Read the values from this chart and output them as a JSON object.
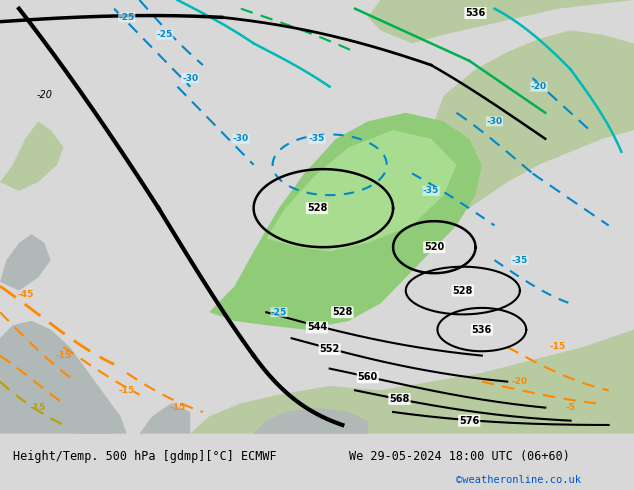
{
  "title_left": "Height/Temp. 500 hPa [gdmp][°C] ECMWF",
  "title_right": "We 29-05-2024 18:00 UTC (06+60)",
  "credit": "©weatheronline.co.uk",
  "sea_color": "#c8d8e8",
  "land_green": "#b8cba0",
  "land_gray": "#b0b8b8",
  "bright_green": "#90cc78",
  "footer_bg": "#d8d8d8",
  "black_color": "#000000",
  "green_contour": "#00b050",
  "cyan_contour": "#00b8b8",
  "blue_dashed": "#0088c8",
  "orange_color": "#ff8800",
  "yellow_color": "#b8a000"
}
